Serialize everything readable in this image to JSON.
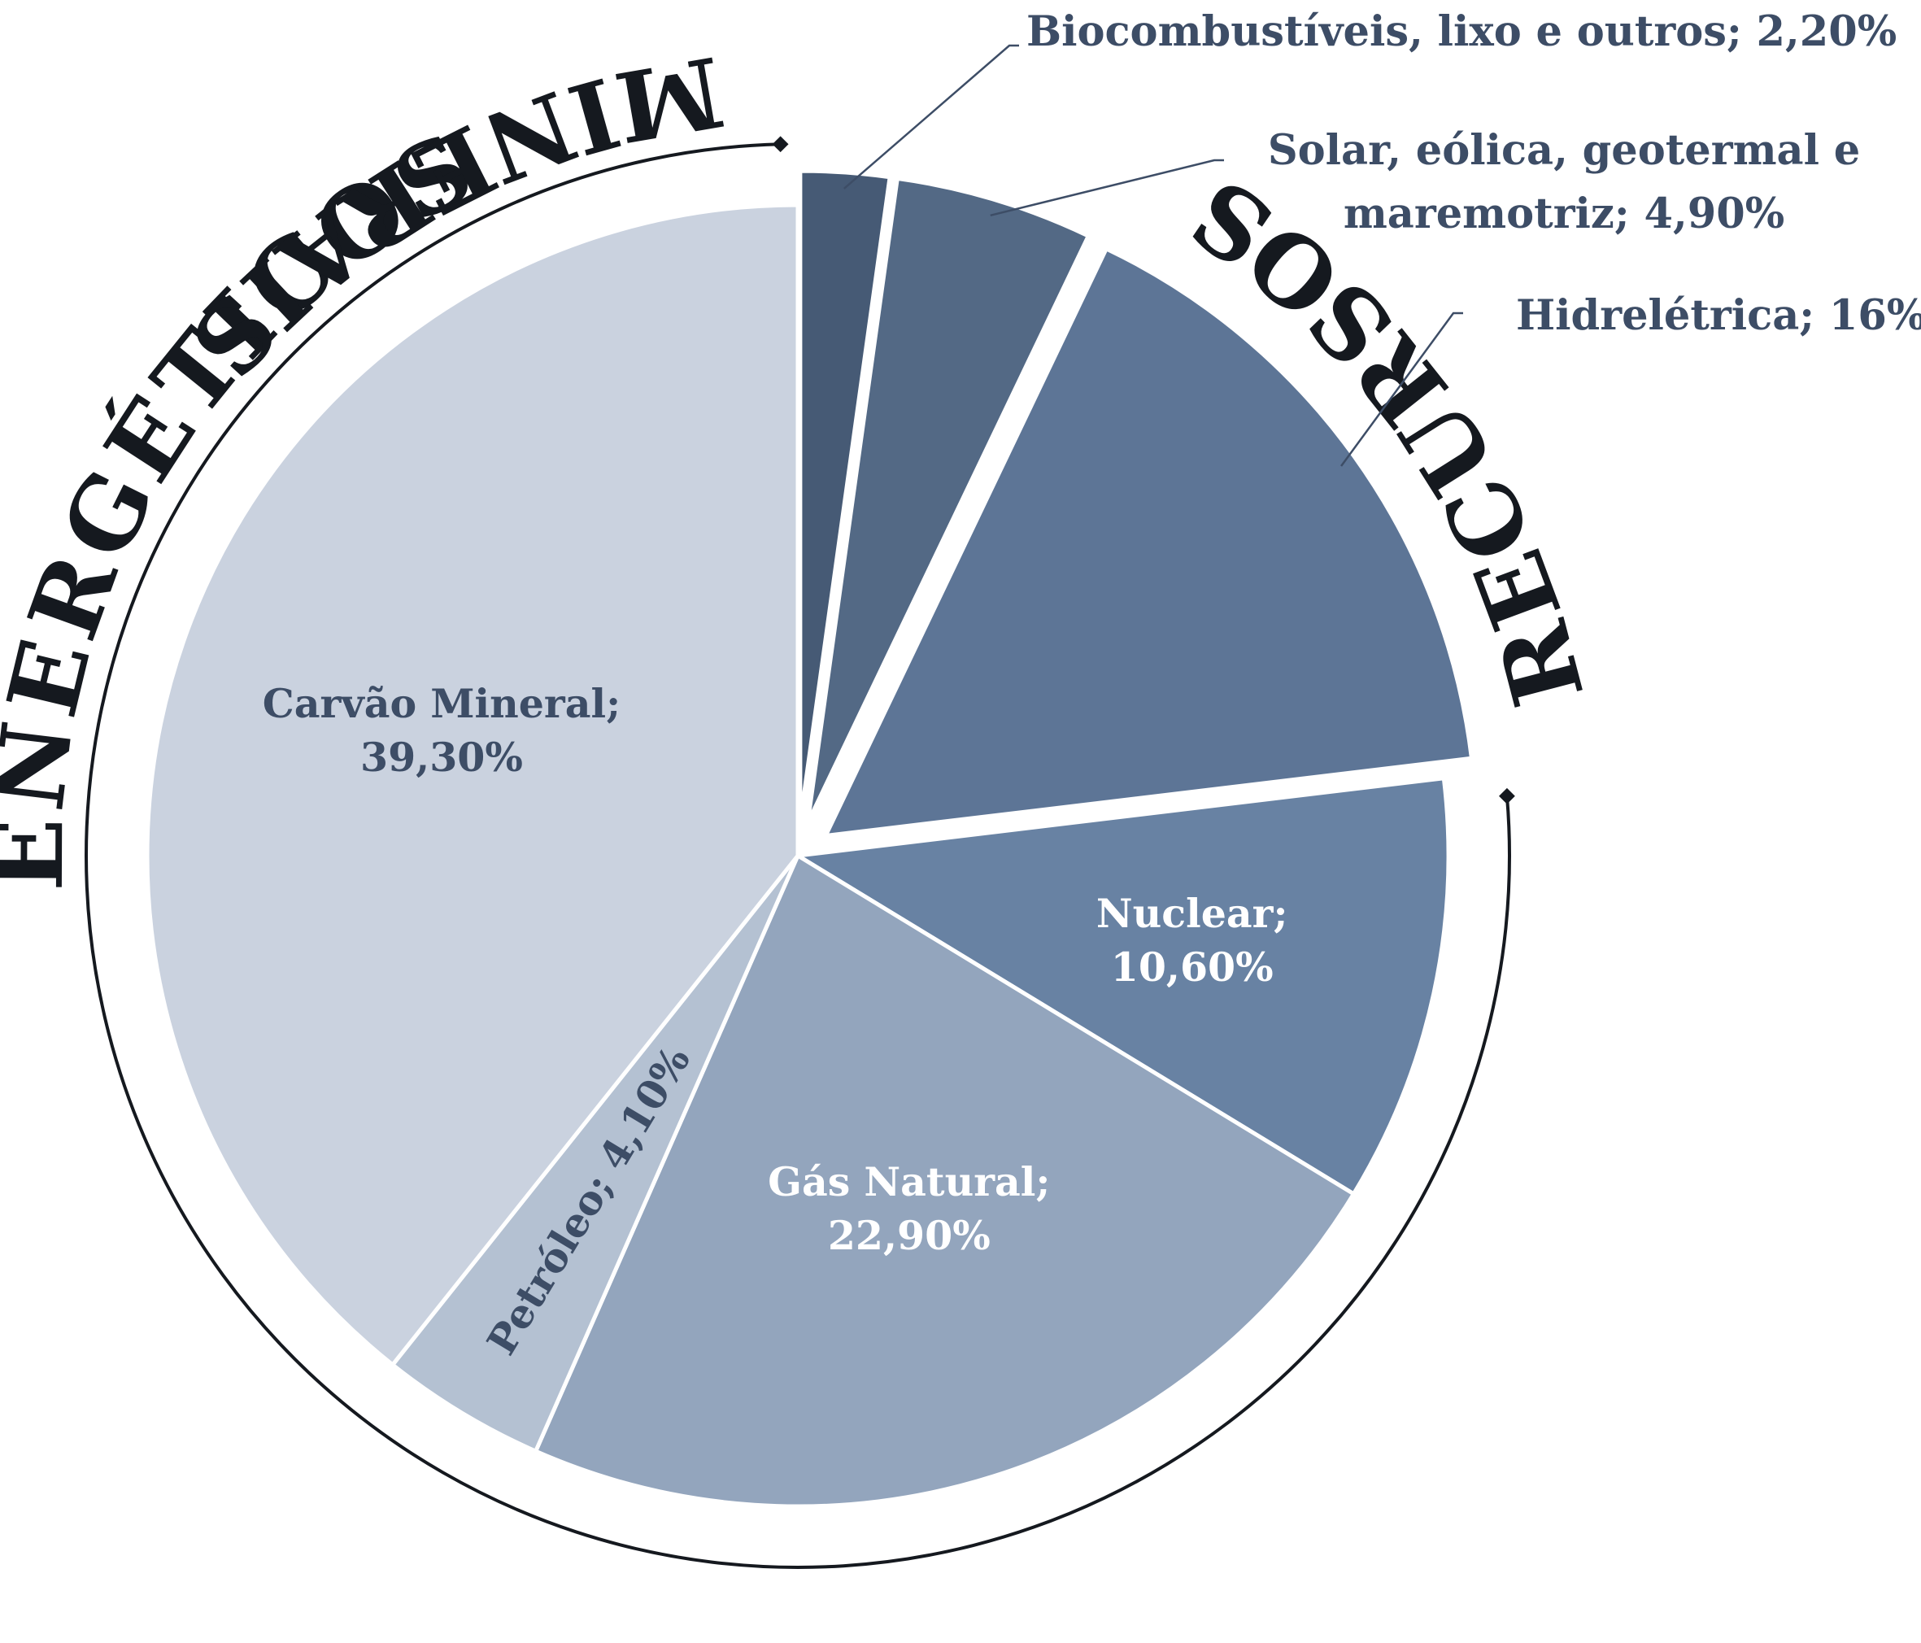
{
  "chart_data": {
    "type": "pie",
    "title": "",
    "ring_text": [
      "RECURSOS",
      "MINERAIS",
      "ENERGÉTICOS"
    ],
    "slices": [
      {
        "label": "Biocombustíveis, lixo e outros",
        "value": 2.2,
        "display": [
          "Biocombustíveis, lixo e outros; 2,20%"
        ],
        "color": "#465a75",
        "label_color": "#3d4d66",
        "exploded": true
      },
      {
        "label": "Solar, eólica, geotermal e maremotriz",
        "value": 4.9,
        "display": [
          "Solar, eólica, geotermal e",
          "maremotriz; 4,90%"
        ],
        "color": "#536985",
        "label_color": "#3d4d66",
        "exploded": true
      },
      {
        "label": "Hidrelétrica",
        "value": 16,
        "display": [
          "Hidrelétrica; 16%"
        ],
        "color": "#5d7596",
        "label_color": "#3d4d66",
        "exploded": true
      },
      {
        "label": "Nuclear",
        "value": 10.6,
        "display": [
          "Nuclear;",
          "10,60%"
        ],
        "color": "#6882a3",
        "label_color": "#ffffff",
        "exploded": false
      },
      {
        "label": "Gás Natural",
        "value": 22.9,
        "display": [
          "Gás Natural;",
          "22,90%"
        ],
        "color": "#93a5bd",
        "label_color": "#ffffff",
        "exploded": false
      },
      {
        "label": "Petróleo",
        "value": 4.1,
        "display": [
          "Petróleo; 4,10%"
        ],
        "color": "#b4c1d2",
        "label_color": "#3d4d66",
        "exploded": false
      },
      {
        "label": "Carvão Mineral",
        "value": 39.3,
        "display": [
          "Carvão Mineral;",
          "39,30%"
        ],
        "color": "#cad2df",
        "label_color": "#3d4d66",
        "exploded": false
      }
    ]
  }
}
